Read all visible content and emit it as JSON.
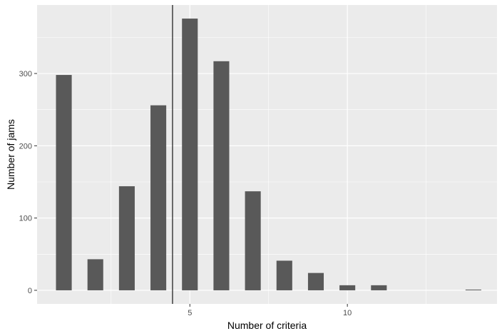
{
  "chart_data": {
    "type": "bar",
    "xlabel": "Number of criteria",
    "ylabel": "Number of jams",
    "x": [
      1,
      2,
      3,
      4,
      5,
      6,
      7,
      8,
      9,
      10,
      11,
      14
    ],
    "values": [
      298,
      43,
      144,
      256,
      376,
      317,
      137,
      41,
      24,
      7,
      7,
      1
    ],
    "xlim": [
      0.15,
      14.75
    ],
    "ylim": [
      -18.8,
      394.8
    ],
    "xticks": [
      {
        "value": 5,
        "label": "5"
      },
      {
        "value": 10,
        "label": "10"
      }
    ],
    "yticks": [
      {
        "value": 0,
        "label": "0"
      },
      {
        "value": 100,
        "label": "100"
      },
      {
        "value": 200,
        "label": "200"
      },
      {
        "value": 300,
        "label": "300"
      }
    ],
    "x_minor_gridlines": [
      2.5,
      7.5,
      12.5
    ],
    "y_minor_gridlines": [
      50,
      150,
      250,
      350
    ],
    "vline": 4.45,
    "grid": true,
    "colors": {
      "panel": "#ebebeb",
      "bar": "#595959",
      "grid_major": "#ffffff",
      "vline": "#000000"
    }
  }
}
